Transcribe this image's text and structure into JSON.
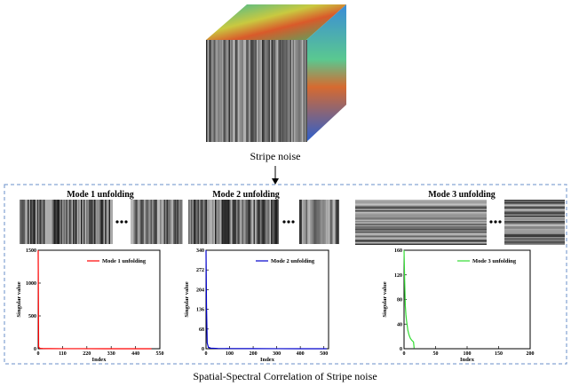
{
  "figure": {
    "cube_label": "Stripe noise",
    "caption": "Spatial-Spectral  Correlation of Stripe noise"
  },
  "chart_data": [
    {
      "type": "line",
      "title": "Mode 1 unfolding",
      "x_label": "Index",
      "y_label": "Singular value",
      "x": [
        0,
        2,
        5,
        10,
        20,
        50,
        100,
        200,
        300,
        400,
        512
      ],
      "series": [
        {
          "name": "Mode 1 unfolding",
          "color": "#ff0000",
          "values": [
            1500,
            30,
            10,
            5,
            3,
            2,
            1,
            1,
            0.5,
            0.3,
            0.1
          ]
        }
      ],
      "xlim": [
        0,
        550
      ],
      "xticks": [
        0,
        110,
        220,
        330,
        440,
        550
      ],
      "ylim": [
        0,
        1500
      ],
      "yticks": [
        0,
        500,
        1000,
        1500
      ]
    },
    {
      "type": "line",
      "title": "Mode 2 unfolding",
      "x_label": "Index",
      "y_label": "Singular value",
      "x": [
        0,
        2,
        5,
        10,
        20,
        50,
        100,
        200,
        300,
        400,
        512
      ],
      "series": [
        {
          "name": "Mode 2 unfolding",
          "color": "#0000cc",
          "values": [
            340,
            150,
            20,
            5,
            2,
            1,
            0.5,
            0.3,
            0.2,
            0.1,
            0.1
          ]
        }
      ],
      "xlim": [
        0,
        520
      ],
      "xticks": [
        0,
        100,
        200,
        300,
        400,
        500
      ],
      "ylim": [
        0,
        340
      ],
      "yticks": [
        0,
        68,
        136,
        204,
        272,
        340
      ]
    },
    {
      "type": "line",
      "title": "Mode 3 unfolding",
      "x_label": "Index",
      "y_label": "Singular value",
      "x": [
        0,
        1,
        2,
        3,
        4,
        5,
        6,
        8,
        10,
        12,
        14,
        15,
        16
      ],
      "series": [
        {
          "name": "Mode 3 unfolding",
          "color": "#33dd33",
          "values": [
            160,
            110,
            70,
            55,
            45,
            38,
            30,
            22,
            17,
            14,
            12,
            11,
            1
          ]
        }
      ],
      "xlim": [
        0,
        200
      ],
      "xticks": [
        0,
        50,
        100,
        150,
        200
      ],
      "ylim": [
        0,
        160
      ],
      "yticks": [
        0,
        40,
        80,
        120,
        160
      ]
    }
  ]
}
